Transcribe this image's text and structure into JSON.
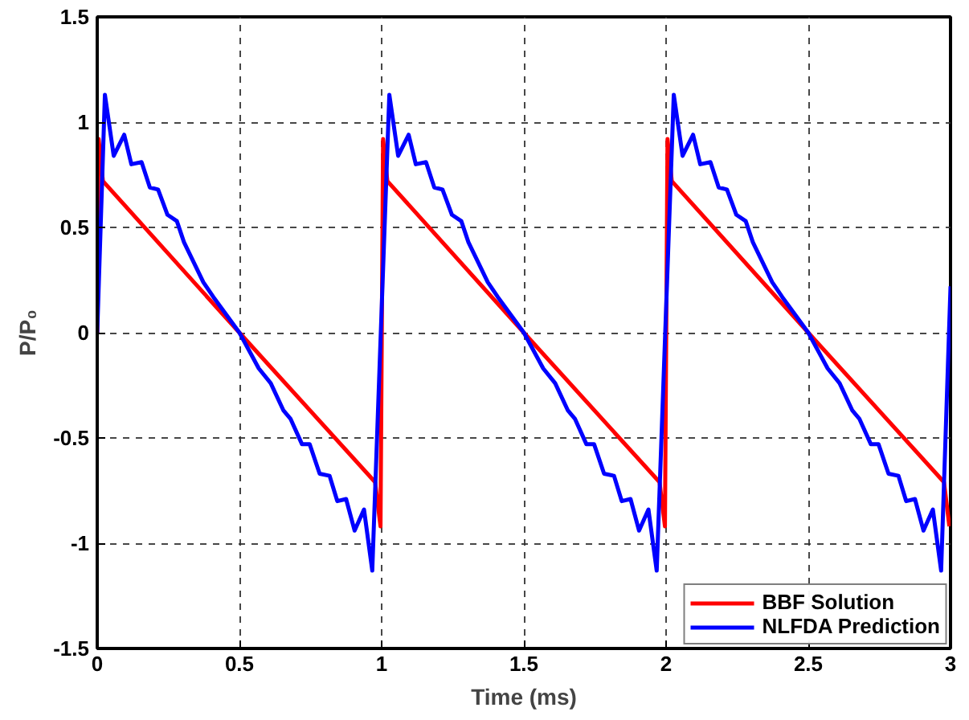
{
  "chart_data": {
    "type": "line",
    "xlabel": "Time (ms)",
    "ylabel": "P/P₀",
    "xlim": [
      0,
      3
    ],
    "ylim": [
      -1.5,
      1.5
    ],
    "xticks": [
      0,
      0.5,
      1,
      1.5,
      2,
      2.5,
      3
    ],
    "yticks": [
      -1.5,
      -1,
      -0.5,
      0,
      0.5,
      1,
      1.5
    ],
    "grid": true,
    "legend": "bottom right",
    "line_style": "solid",
    "series": [
      {
        "name": "BBF Solution",
        "color": "#ff0000",
        "x": [
          0,
          0.005,
          0.02,
          0.5,
          0.977,
          0.996,
          1.005,
          1.02,
          1.5,
          1.977,
          1.996,
          2.005,
          2.02,
          2.5,
          2.977,
          2.996
        ],
        "values": [
          0,
          0.92,
          0.72,
          0,
          -0.71,
          -0.92,
          0.92,
          0.72,
          0,
          -0.71,
          -0.92,
          0.92,
          0.72,
          0,
          -0.71,
          -0.92
        ]
      },
      {
        "name": "NLFDA Prediction",
        "color": "#0000ff",
        "x": [
          0,
          0.027,
          0.058,
          0.095,
          0.12,
          0.156,
          0.185,
          0.214,
          0.247,
          0.28,
          0.305,
          0.373,
          0.408,
          0.5,
          0.568,
          0.61,
          0.655,
          0.68,
          0.72,
          0.747,
          0.782,
          0.817,
          0.844,
          0.875,
          0.905,
          0.938,
          0.967,
          1.027,
          1.058,
          1.095,
          1.12,
          1.156,
          1.185,
          1.214,
          1.247,
          1.28,
          1.305,
          1.373,
          1.408,
          1.5,
          1.568,
          1.61,
          1.655,
          1.68,
          1.72,
          1.747,
          1.782,
          1.817,
          1.844,
          1.875,
          1.905,
          1.938,
          1.967,
          2.027,
          2.058,
          2.095,
          2.12,
          2.156,
          2.185,
          2.214,
          2.247,
          2.28,
          2.305,
          2.373,
          2.408,
          2.5,
          2.568,
          2.61,
          2.655,
          2.68,
          2.72,
          2.747,
          2.782,
          2.817,
          2.844,
          2.875,
          2.905,
          2.938,
          2.967,
          3.0
        ],
        "values": [
          0,
          1.13,
          0.84,
          0.94,
          0.8,
          0.81,
          0.69,
          0.68,
          0.56,
          0.53,
          0.43,
          0.24,
          0.17,
          0,
          -0.17,
          -0.24,
          -0.37,
          -0.41,
          -0.53,
          -0.53,
          -0.67,
          -0.68,
          -0.8,
          -0.79,
          -0.94,
          -0.84,
          -1.13,
          1.13,
          0.84,
          0.94,
          0.8,
          0.81,
          0.69,
          0.68,
          0.56,
          0.53,
          0.43,
          0.24,
          0.17,
          0,
          -0.17,
          -0.24,
          -0.37,
          -0.41,
          -0.53,
          -0.53,
          -0.67,
          -0.68,
          -0.8,
          -0.79,
          -0.94,
          -0.84,
          -1.13,
          1.13,
          0.84,
          0.94,
          0.8,
          0.81,
          0.69,
          0.68,
          0.56,
          0.53,
          0.43,
          0.24,
          0.17,
          0,
          -0.17,
          -0.24,
          -0.37,
          -0.41,
          -0.53,
          -0.53,
          -0.67,
          -0.68,
          -0.8,
          -0.79,
          -0.94,
          -0.84,
          -1.13,
          0.22
        ]
      }
    ]
  }
}
